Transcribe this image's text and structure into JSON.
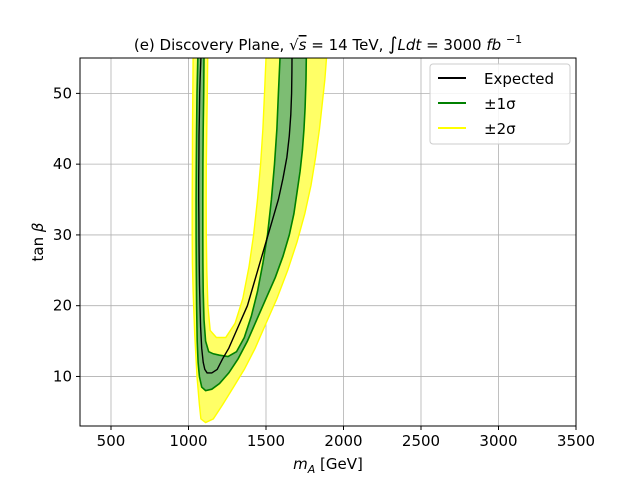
{
  "chart_data": {
    "type": "contour-band",
    "title_prefix": "(e) Discovery Plane, ",
    "title_energy_lhs": "s",
    "title_energy_rhs": " = 14 TeV, ",
    "title_lumi_integrand": "Ldt",
    "title_lumi_rhs": " = 3000 ",
    "title_lumi_unit": "fb",
    "title_lumi_exponent": "−1",
    "xlabel_symbol": "m",
    "xlabel_subscript": "A",
    "xlabel_unit": " [GeV]",
    "ylabel_func": "tan ",
    "ylabel_symbol": "β",
    "xlim": [
      300,
      3500
    ],
    "ylim": [
      3,
      55
    ],
    "grid": true,
    "legend_position": "top-right",
    "x_ticks": [
      500,
      1000,
      1500,
      2000,
      2500,
      3000,
      3500
    ],
    "x_tick_labels": [
      "500",
      "1000",
      "1500",
      "2000",
      "2500",
      "3000",
      "3500"
    ],
    "y_ticks": [
      10,
      20,
      30,
      40,
      50
    ],
    "y_tick_labels": [
      "10",
      "20",
      "30",
      "40",
      "50"
    ],
    "legend": [
      {
        "label": "Expected",
        "color": "#000000",
        "kind": "line"
      },
      {
        "label": "±1σ",
        "color": "#008000",
        "kind": "line"
      },
      {
        "label": "±2σ",
        "color": "#ffff00",
        "kind": "line"
      }
    ],
    "colors": {
      "two_sigma_fill": "#ffff66",
      "one_sigma_fill": "#7dbd73",
      "one_sigma_edge": "#008000",
      "expected": "#000000",
      "grid": "#b0b0b0"
    },
    "series": {
      "expected": [
        [
          1080,
          55
        ],
        [
          1075,
          52
        ],
        [
          1072,
          50
        ],
        [
          1070,
          47
        ],
        [
          1068,
          44
        ],
        [
          1067,
          41
        ],
        [
          1066,
          38
        ],
        [
          1066,
          35
        ],
        [
          1067,
          32
        ],
        [
          1068,
          29
        ],
        [
          1069,
          26
        ],
        [
          1071,
          23
        ],
        [
          1074,
          20
        ],
        [
          1078,
          17
        ],
        [
          1085,
          14
        ],
        [
          1095,
          12
        ],
        [
          1105,
          11
        ],
        [
          1120,
          10.5
        ],
        [
          1150,
          10.5
        ],
        [
          1185,
          11
        ],
        [
          1220,
          12.5
        ],
        [
          1260,
          14
        ],
        [
          1300,
          16
        ],
        [
          1340,
          18
        ],
        [
          1380,
          20
        ],
        [
          1420,
          23
        ],
        [
          1460,
          26
        ],
        [
          1500,
          29
        ],
        [
          1540,
          32
        ],
        [
          1580,
          35
        ],
        [
          1610,
          38
        ],
        [
          1635,
          41
        ],
        [
          1650,
          44
        ],
        [
          1660,
          47
        ],
        [
          1665,
          50
        ],
        [
          1667,
          53
        ],
        [
          1668,
          55
        ]
      ],
      "one_sigma_outer": [
        [
          1060,
          55
        ],
        [
          1055,
          50
        ],
        [
          1052,
          45
        ],
        [
          1050,
          40
        ],
        [
          1049,
          35
        ],
        [
          1049,
          30
        ],
        [
          1050,
          25
        ],
        [
          1052,
          20
        ],
        [
          1056,
          15
        ],
        [
          1062,
          12
        ],
        [
          1070,
          10
        ],
        [
          1085,
          8.5
        ],
        [
          1110,
          8
        ],
        [
          1150,
          8.2
        ],
        [
          1200,
          9
        ],
        [
          1260,
          10.5
        ],
        [
          1320,
          12.5
        ],
        [
          1380,
          15
        ],
        [
          1440,
          18
        ],
        [
          1500,
          21
        ],
        [
          1560,
          24
        ],
        [
          1610,
          27
        ],
        [
          1650,
          30
        ],
        [
          1680,
          33
        ],
        [
          1700,
          36
        ],
        [
          1720,
          39
        ],
        [
          1735,
          42
        ],
        [
          1745,
          45
        ],
        [
          1752,
          48
        ],
        [
          1758,
          52
        ],
        [
          1760,
          55
        ]
      ],
      "one_sigma_inner": [
        [
          1590,
          55
        ],
        [
          1580,
          50
        ],
        [
          1570,
          45
        ],
        [
          1555,
          40
        ],
        [
          1535,
          35
        ],
        [
          1510,
          30
        ],
        [
          1480,
          26
        ],
        [
          1445,
          22
        ],
        [
          1405,
          18.5
        ],
        [
          1360,
          15.5
        ],
        [
          1310,
          13.5
        ],
        [
          1255,
          12.8
        ],
        [
          1200,
          13
        ],
        [
          1160,
          13.2
        ],
        [
          1130,
          13.5
        ],
        [
          1110,
          15
        ],
        [
          1100,
          18
        ],
        [
          1095,
          22
        ],
        [
          1093,
          26
        ],
        [
          1092,
          30
        ],
        [
          1092,
          35
        ],
        [
          1093,
          40
        ],
        [
          1095,
          45
        ],
        [
          1098,
          50
        ],
        [
          1100,
          55
        ]
      ],
      "two_sigma_outer": [
        [
          1030,
          55
        ],
        [
          1028,
          50
        ],
        [
          1026,
          45
        ],
        [
          1025,
          40
        ],
        [
          1024,
          35
        ],
        [
          1024,
          30
        ],
        [
          1025,
          26
        ],
        [
          1030,
          22
        ],
        [
          1040,
          16
        ],
        [
          1055,
          10
        ],
        [
          1070,
          6
        ],
        [
          1080,
          4
        ],
        [
          1110,
          3.5
        ],
        [
          1160,
          4
        ],
        [
          1220,
          6
        ],
        [
          1290,
          8.5
        ],
        [
          1360,
          11
        ],
        [
          1430,
          14
        ],
        [
          1500,
          17.5
        ],
        [
          1570,
          21
        ],
        [
          1640,
          25
        ],
        [
          1700,
          29
        ],
        [
          1750,
          33
        ],
        [
          1790,
          37
        ],
        [
          1820,
          41
        ],
        [
          1845,
          45
        ],
        [
          1865,
          49
        ],
        [
          1880,
          52
        ],
        [
          1890,
          55
        ]
      ],
      "two_sigma_inner": [
        [
          1500,
          55
        ],
        [
          1490,
          50
        ],
        [
          1480,
          45
        ],
        [
          1465,
          40
        ],
        [
          1445,
          35
        ],
        [
          1420,
          30
        ],
        [
          1390,
          25.5
        ],
        [
          1350,
          21
        ],
        [
          1300,
          17.5
        ],
        [
          1240,
          15.5
        ],
        [
          1180,
          15.5
        ],
        [
          1140,
          16.5
        ],
        [
          1125,
          20
        ],
        [
          1118,
          25
        ],
        [
          1115,
          30
        ],
        [
          1114,
          35
        ],
        [
          1115,
          40
        ],
        [
          1118,
          45
        ],
        [
          1121,
          50
        ],
        [
          1124,
          55
        ]
      ]
    }
  }
}
